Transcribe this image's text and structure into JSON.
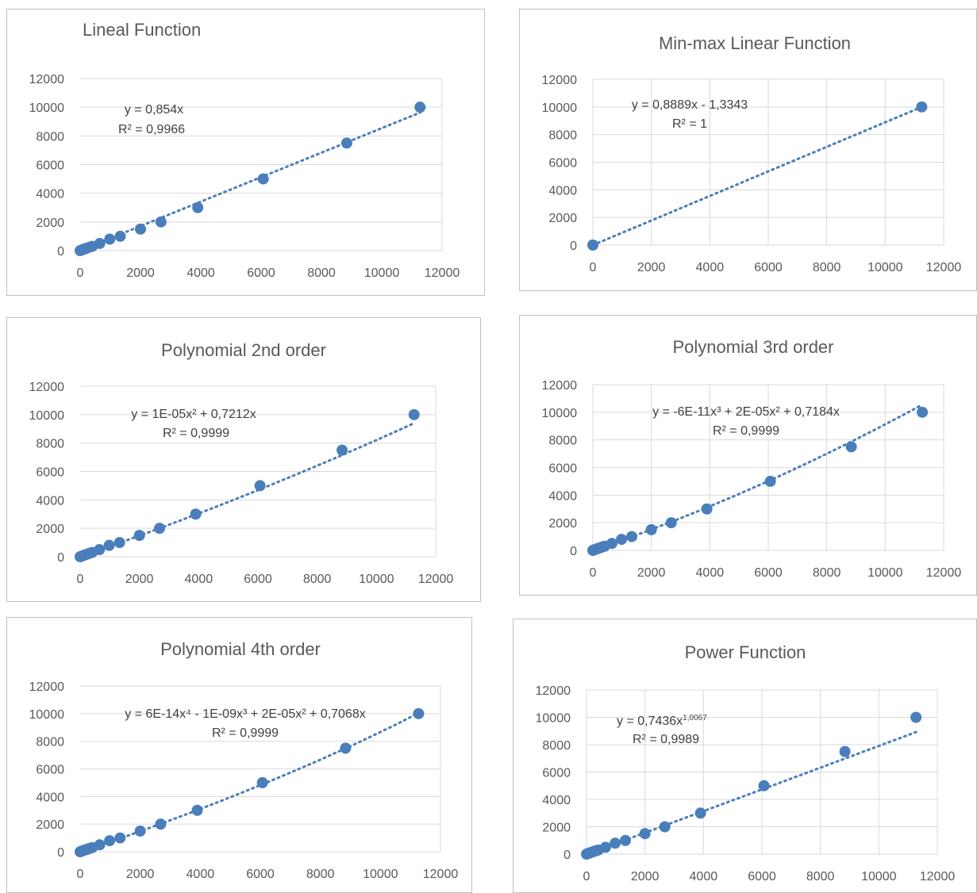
{
  "colors": {
    "series": "#4a7ebb",
    "grid": "#d9d9d9",
    "text": "#595959",
    "border": "#bfbfbf"
  },
  "chart_data": [
    {
      "type": "scatter",
      "title": "Lineal Function",
      "equation": "y = 0,854x",
      "r2": "R² = 0,9966",
      "xlim": [
        0,
        12000
      ],
      "ylim": [
        0,
        12000
      ],
      "xticks": [
        "0",
        "2000",
        "4000",
        "6000",
        "8000",
        "10000",
        "12000"
      ],
      "yticks": [
        "0",
        "2000",
        "4000",
        "6000",
        "8000",
        "10000",
        "12000"
      ],
      "grid": "horizontal",
      "trendline": {
        "kind": "linear",
        "coef": [
          0,
          0.854
        ]
      },
      "points": [
        [
          0,
          0
        ],
        [
          50,
          40
        ],
        [
          100,
          80
        ],
        [
          150,
          120
        ],
        [
          220,
          170
        ],
        [
          300,
          230
        ],
        [
          400,
          300
        ],
        [
          650,
          500
        ],
        [
          980,
          800
        ],
        [
          1330,
          1000
        ],
        [
          2000,
          1500
        ],
        [
          2680,
          2000
        ],
        [
          3900,
          3000
        ],
        [
          6070,
          5000
        ],
        [
          8840,
          7500
        ],
        [
          11270,
          10000
        ]
      ]
    },
    {
      "type": "scatter",
      "title": "Min-max Linear Function",
      "equation": "y = 0,8889x - 1,3343",
      "r2": "R² = 1",
      "xlim": [
        0,
        12000
      ],
      "ylim": [
        0,
        12000
      ],
      "xticks": [
        "0",
        "2000",
        "4000",
        "6000",
        "8000",
        "10000",
        "12000"
      ],
      "yticks": [
        "0",
        "2000",
        "4000",
        "6000",
        "8000",
        "10000",
        "12000"
      ],
      "grid": "both",
      "trendline": {
        "kind": "linear",
        "coef": [
          -1.3343,
          0.8889
        ]
      },
      "points": [
        [
          0,
          0
        ],
        [
          11250,
          10000
        ]
      ]
    },
    {
      "type": "scatter",
      "title": "Polynomial 2nd order",
      "equation": "y = 1E-05x² + 0,7212x",
      "r2": "R² = 0,9999",
      "xlim": [
        0,
        12000
      ],
      "ylim": [
        0,
        12000
      ],
      "xticks": [
        "0",
        "2000",
        "4000",
        "6000",
        "8000",
        "10000",
        "12000"
      ],
      "yticks": [
        "0",
        "2000",
        "4000",
        "6000",
        "8000",
        "10000",
        "12000"
      ],
      "grid": "horizontal",
      "trendline": {
        "kind": "poly",
        "coef": [
          0,
          0.7212,
          1e-05
        ]
      },
      "points": [
        [
          0,
          0
        ],
        [
          50,
          40
        ],
        [
          100,
          80
        ],
        [
          150,
          120
        ],
        [
          220,
          170
        ],
        [
          300,
          230
        ],
        [
          400,
          300
        ],
        [
          650,
          500
        ],
        [
          980,
          800
        ],
        [
          1330,
          1000
        ],
        [
          2000,
          1500
        ],
        [
          2680,
          2000
        ],
        [
          3900,
          3000
        ],
        [
          6070,
          5000
        ],
        [
          8840,
          7500
        ],
        [
          11270,
          10000
        ]
      ]
    },
    {
      "type": "scatter",
      "title": "Polynomial 3rd order",
      "equation": "y = -6E-11x³ + 2E-05x² + 0,7184x",
      "r2": "R² = 0,9999",
      "xlim": [
        0,
        12000
      ],
      "ylim": [
        0,
        12000
      ],
      "xticks": [
        "0",
        "2000",
        "4000",
        "6000",
        "8000",
        "10000",
        "12000"
      ],
      "yticks": [
        "0",
        "2000",
        "4000",
        "6000",
        "8000",
        "10000",
        "12000"
      ],
      "grid": "both",
      "trendline": {
        "kind": "poly",
        "coef": [
          0,
          0.7184,
          2e-05,
          -6e-11
        ]
      },
      "points": [
        [
          0,
          0
        ],
        [
          50,
          40
        ],
        [
          100,
          80
        ],
        [
          150,
          120
        ],
        [
          220,
          170
        ],
        [
          300,
          230
        ],
        [
          400,
          300
        ],
        [
          650,
          500
        ],
        [
          980,
          800
        ],
        [
          1330,
          1000
        ],
        [
          2000,
          1500
        ],
        [
          2680,
          2000
        ],
        [
          3900,
          3000
        ],
        [
          6070,
          5000
        ],
        [
          8840,
          7500
        ],
        [
          11270,
          10000
        ]
      ]
    },
    {
      "type": "scatter",
      "title": "Polynomial 4th order",
      "equation": "y = 6E-14x⁴ - 1E-09x³ + 2E-05x² + 0,7068x",
      "r2": "R² = 0,9999",
      "xlim": [
        0,
        12000
      ],
      "ylim": [
        0,
        12000
      ],
      "xticks": [
        "0",
        "2000",
        "4000",
        "6000",
        "8000",
        "10000",
        "12000"
      ],
      "yticks": [
        "0",
        "2000",
        "4000",
        "6000",
        "8000",
        "10000",
        "12000"
      ],
      "grid": "horizontal",
      "trendline": {
        "kind": "poly",
        "coef": [
          0,
          0.7068,
          2e-05,
          -1e-09,
          6e-14
        ]
      },
      "points": [
        [
          0,
          0
        ],
        [
          50,
          40
        ],
        [
          100,
          80
        ],
        [
          150,
          120
        ],
        [
          220,
          170
        ],
        [
          300,
          230
        ],
        [
          400,
          300
        ],
        [
          650,
          500
        ],
        [
          980,
          800
        ],
        [
          1330,
          1000
        ],
        [
          2000,
          1500
        ],
        [
          2680,
          2000
        ],
        [
          3900,
          3000
        ],
        [
          6070,
          5000
        ],
        [
          8840,
          7500
        ],
        [
          11270,
          10000
        ]
      ]
    },
    {
      "type": "scatter",
      "title": "Power Function",
      "equation": "y = 0,7436x",
      "equation_exp": "1,0067",
      "r2": "R² = 0,9989",
      "xlim": [
        0,
        12000
      ],
      "ylim": [
        0,
        12000
      ],
      "xticks": [
        "0",
        "2000",
        "4000",
        "6000",
        "8000",
        "10000",
        "12000"
      ],
      "yticks": [
        "0",
        "2000",
        "4000",
        "6000",
        "8000",
        "10000",
        "12000"
      ],
      "grid": "both",
      "trendline": {
        "kind": "power",
        "coef": [
          0.7436,
          1.0067
        ]
      },
      "points": [
        [
          0,
          0
        ],
        [
          50,
          40
        ],
        [
          100,
          80
        ],
        [
          150,
          120
        ],
        [
          220,
          170
        ],
        [
          300,
          230
        ],
        [
          400,
          300
        ],
        [
          650,
          500
        ],
        [
          980,
          800
        ],
        [
          1330,
          1000
        ],
        [
          2000,
          1500
        ],
        [
          2680,
          2000
        ],
        [
          3900,
          3000
        ],
        [
          6070,
          5000
        ],
        [
          8840,
          7500
        ],
        [
          11270,
          10000
        ]
      ]
    }
  ]
}
